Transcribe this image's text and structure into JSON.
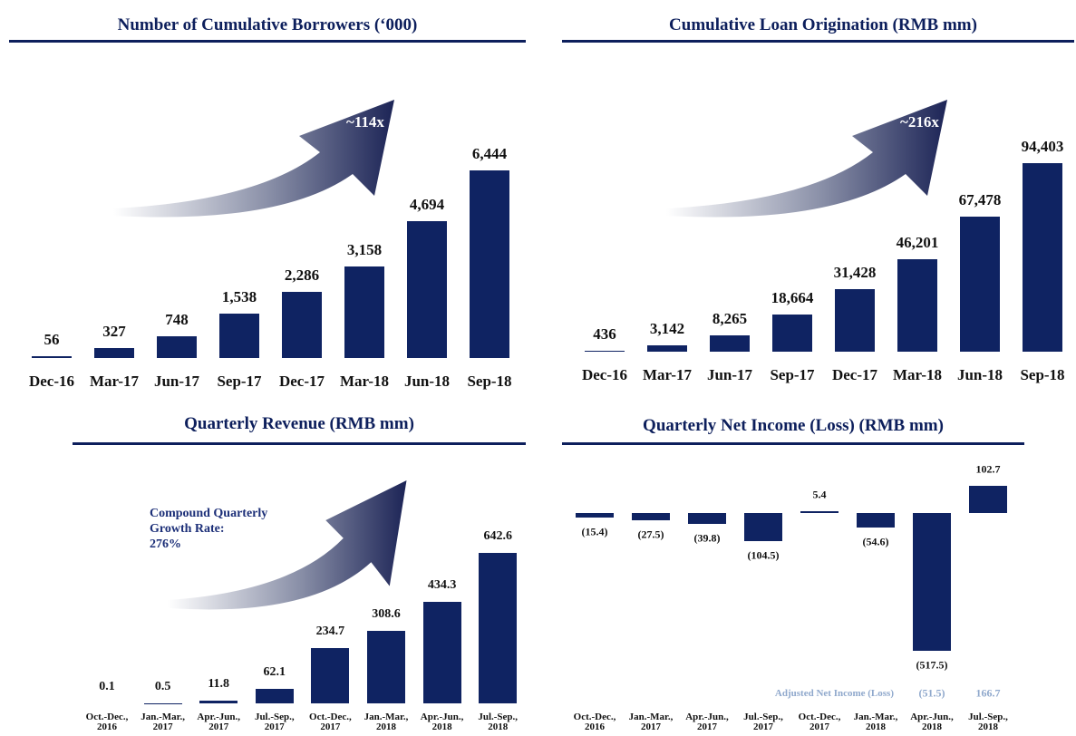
{
  "chart_data": [
    {
      "type": "bar",
      "title": "Number of Cumulative Borrowers (‘000)",
      "color": "#0f2362",
      "annotation": [
        "~114x"
      ],
      "categories": [
        "Dec-16",
        "Mar-17",
        "Jun-17",
        "Sep-17",
        "Dec-17",
        "Mar-18",
        "Jun-18",
        "Sep-18"
      ],
      "values": [
        56,
        327,
        748,
        1538,
        2286,
        3158,
        4694,
        6444
      ],
      "value_labels": [
        "56",
        "327",
        "748",
        "1,538",
        "2,286",
        "3,158",
        "4,694",
        "6,444"
      ]
    },
    {
      "type": "bar",
      "title": "Cumulative Loan Origination (RMB mm)",
      "color": "#0f2362",
      "annotation": [
        "~216x"
      ],
      "categories": [
        "Dec-16",
        "Mar-17",
        "Jun-17",
        "Sep-17",
        "Dec-17",
        "Mar-18",
        "Jun-18",
        "Sep-18"
      ],
      "values": [
        436,
        3142,
        8265,
        18664,
        31428,
        46201,
        67478,
        94403
      ],
      "value_labels": [
        "436",
        "3,142",
        "8,265",
        "18,664",
        "31,428",
        "46,201",
        "67,478",
        "94,403"
      ]
    },
    {
      "type": "bar",
      "title": "Quarterly Revenue (RMB mm)",
      "color": "#0f2362",
      "annotation": [
        "Compound Quarterly",
        "Growth Rate:",
        "276%"
      ],
      "categories": [
        [
          "Oct.-Dec.,",
          "2016"
        ],
        [
          "Jan.-Mar.,",
          "2017"
        ],
        [
          "Apr.-Jun.,",
          "2017"
        ],
        [
          "Jul.-Sep.,",
          "2017"
        ],
        [
          "Oct.-Dec.,",
          "2017"
        ],
        [
          "Jan.-Mar.,",
          "2018"
        ],
        [
          "Apr.-Jun.,",
          "2018"
        ],
        [
          "Jul.-Sep.,",
          "2018"
        ]
      ],
      "values": [
        0.1,
        0.5,
        11.8,
        62.1,
        234.7,
        308.6,
        434.3,
        642.6
      ]
    },
    {
      "type": "bar",
      "title": "Quarterly Net Income (Loss) (RMB mm)",
      "color": "#0f2362",
      "categories": [
        [
          "Oct.-Dec.,",
          "2016"
        ],
        [
          "Jan.-Mar.,",
          "2017"
        ],
        [
          "Apr.-Jun.,",
          "2017"
        ],
        [
          "Jul.-Sep.,",
          "2017"
        ],
        [
          "Oct.-Dec.,",
          "2017"
        ],
        [
          "Jan.-Mar.,",
          "2018"
        ],
        [
          "Apr.-Jun.,",
          "2018"
        ],
        [
          "Jul.-Sep.,",
          "2018"
        ]
      ],
      "values": [
        -15.4,
        -27.5,
        -39.8,
        -104.5,
        5.4,
        -54.6,
        -517.5,
        102.7
      ],
      "value_labels": [
        "(15.4)",
        "(27.5)",
        "(39.8)",
        "(104.5)",
        "5.4",
        "(54.6)",
        "(517.5)",
        "102.7"
      ],
      "adjusted_label": "Adjusted Net Income (Loss)",
      "adjusted_values": [
        -51.5,
        166.7
      ],
      "adjusted_value_labels": [
        "(51.5)",
        "166.7"
      ],
      "adjusted_color": "#8fa8cc"
    }
  ]
}
